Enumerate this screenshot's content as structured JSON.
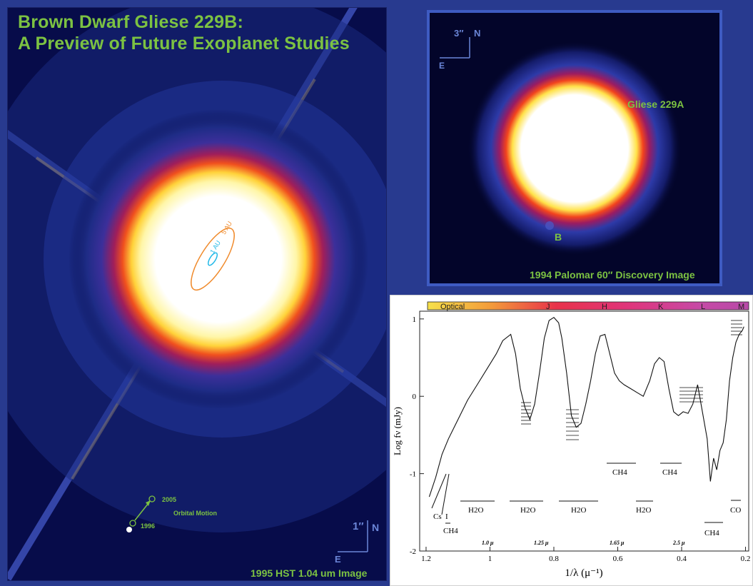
{
  "hst_image": {
    "title_line1": "Brown Dwarf Gliese 229B:",
    "title_line2": "A Preview of  Future Exoplanet Studies",
    "orbit_1au": "1 AU",
    "orbit_5au": "5 AU",
    "motion_2005": "2005",
    "motion_1996": "1996",
    "orbital_motion": "Orbital Motion",
    "scale_label": "1″",
    "north": "N",
    "east": "E",
    "caption": "1995 HST 1.04 um Image",
    "colors": {
      "title": "#7cc242",
      "orbit_1au": "#22b9e8",
      "orbit_5au": "#f08a2b",
      "motion": "#7cc242"
    }
  },
  "palomar_image": {
    "scale_label": "3″",
    "north": "N",
    "east": "E",
    "star_label": "Gliese 229A",
    "companion_label": "B",
    "caption": "1994  Palomar 60″ Discovery Image"
  },
  "spectrum": {
    "band_optical": "Optical",
    "band_j": "J",
    "band_h": "H",
    "band_k": "K",
    "band_l": "L",
    "band_m": "M",
    "ylabel": "Log fν (mJy)",
    "xlabel": "1/λ (μ⁻¹)",
    "wl_1": "1.0 μ",
    "wl_2": "1.25 μ",
    "wl_3": "1.65 μ",
    "wl_4": "2.5 μ",
    "feature_cs": "Cs",
    "feature_i": "I",
    "feature_ch4_a": "CH4",
    "feature_h2o_a": "H2O",
    "feature_h2o_b": "H2O",
    "feature_h2o_c": "H2O",
    "feature_ch4_b": "CH4",
    "feature_ch4_c": "CH4",
    "feature_h2o_d": "H2O",
    "feature_ch4_d": "CH4",
    "feature_co": "CO"
  },
  "chart_data": {
    "type": "line",
    "xlabel": "1/λ (μ⁻¹)",
    "ylabel": "Log fν (mJy)",
    "xlim": [
      1.22,
      0.19
    ],
    "ylim": [
      -2,
      1.1
    ],
    "x_ticks": [
      1.2,
      1,
      0.8,
      0.6,
      0.4,
      0.2
    ],
    "x_tick_labels": [
      "1.2",
      "1",
      "0.8",
      "0.6",
      "0.4",
      "0.2"
    ],
    "y_ticks": [
      -2,
      -1,
      0,
      1
    ],
    "y_tick_labels": [
      "-2",
      "-1",
      "0",
      "1"
    ],
    "series": [
      {
        "x": [
          1.19,
          1.17,
          1.15,
          1.13,
          1.1,
          1.07,
          1.04,
          1.01,
          0.98,
          0.96,
          0.935,
          0.92,
          0.905,
          0.89,
          0.875,
          0.86,
          0.845,
          0.83,
          0.815,
          0.8,
          0.785,
          0.775,
          0.76,
          0.745,
          0.73,
          0.715,
          0.7,
          0.685,
          0.67,
          0.655,
          0.64,
          0.625,
          0.61,
          0.595,
          0.58,
          0.56,
          0.54,
          0.52,
          0.5,
          0.485,
          0.47,
          0.455,
          0.44,
          0.425,
          0.41,
          0.395,
          0.38,
          0.365,
          0.35,
          0.335,
          0.32,
          0.31,
          0.3,
          0.29,
          0.28,
          0.27,
          0.26,
          0.25,
          0.24,
          0.23,
          0.22,
          0.21,
          0.205
        ],
        "y": [
          -1.3,
          -1.05,
          -0.75,
          -0.55,
          -0.3,
          -0.05,
          0.15,
          0.35,
          0.55,
          0.72,
          0.8,
          0.55,
          0.1,
          -0.15,
          -0.3,
          -0.1,
          0.3,
          0.75,
          0.98,
          1.02,
          0.95,
          0.75,
          0.3,
          -0.25,
          -0.4,
          -0.35,
          -0.1,
          0.2,
          0.55,
          0.78,
          0.8,
          0.55,
          0.3,
          0.2,
          0.15,
          0.1,
          0.05,
          0.0,
          0.2,
          0.42,
          0.5,
          0.45,
          0.1,
          -0.2,
          -0.25,
          -0.2,
          -0.22,
          -0.1,
          0.15,
          -0.2,
          -0.55,
          -1.1,
          -0.8,
          -0.95,
          -0.7,
          -0.6,
          -0.3,
          0.2,
          0.5,
          0.7,
          0.8,
          0.85,
          0.9
        ]
      }
    ],
    "annotations": [
      "Cs I",
      "CH4",
      "H2O",
      "H2O",
      "H2O",
      "CH4",
      "CH4",
      "H2O",
      "CH4",
      "CO",
      "1.0 μ",
      "1.25 μ",
      "1.65 μ",
      "2.5 μ"
    ],
    "color_bar_labels": [
      "Optical",
      "J",
      "H",
      "K",
      "L",
      "M"
    ]
  }
}
